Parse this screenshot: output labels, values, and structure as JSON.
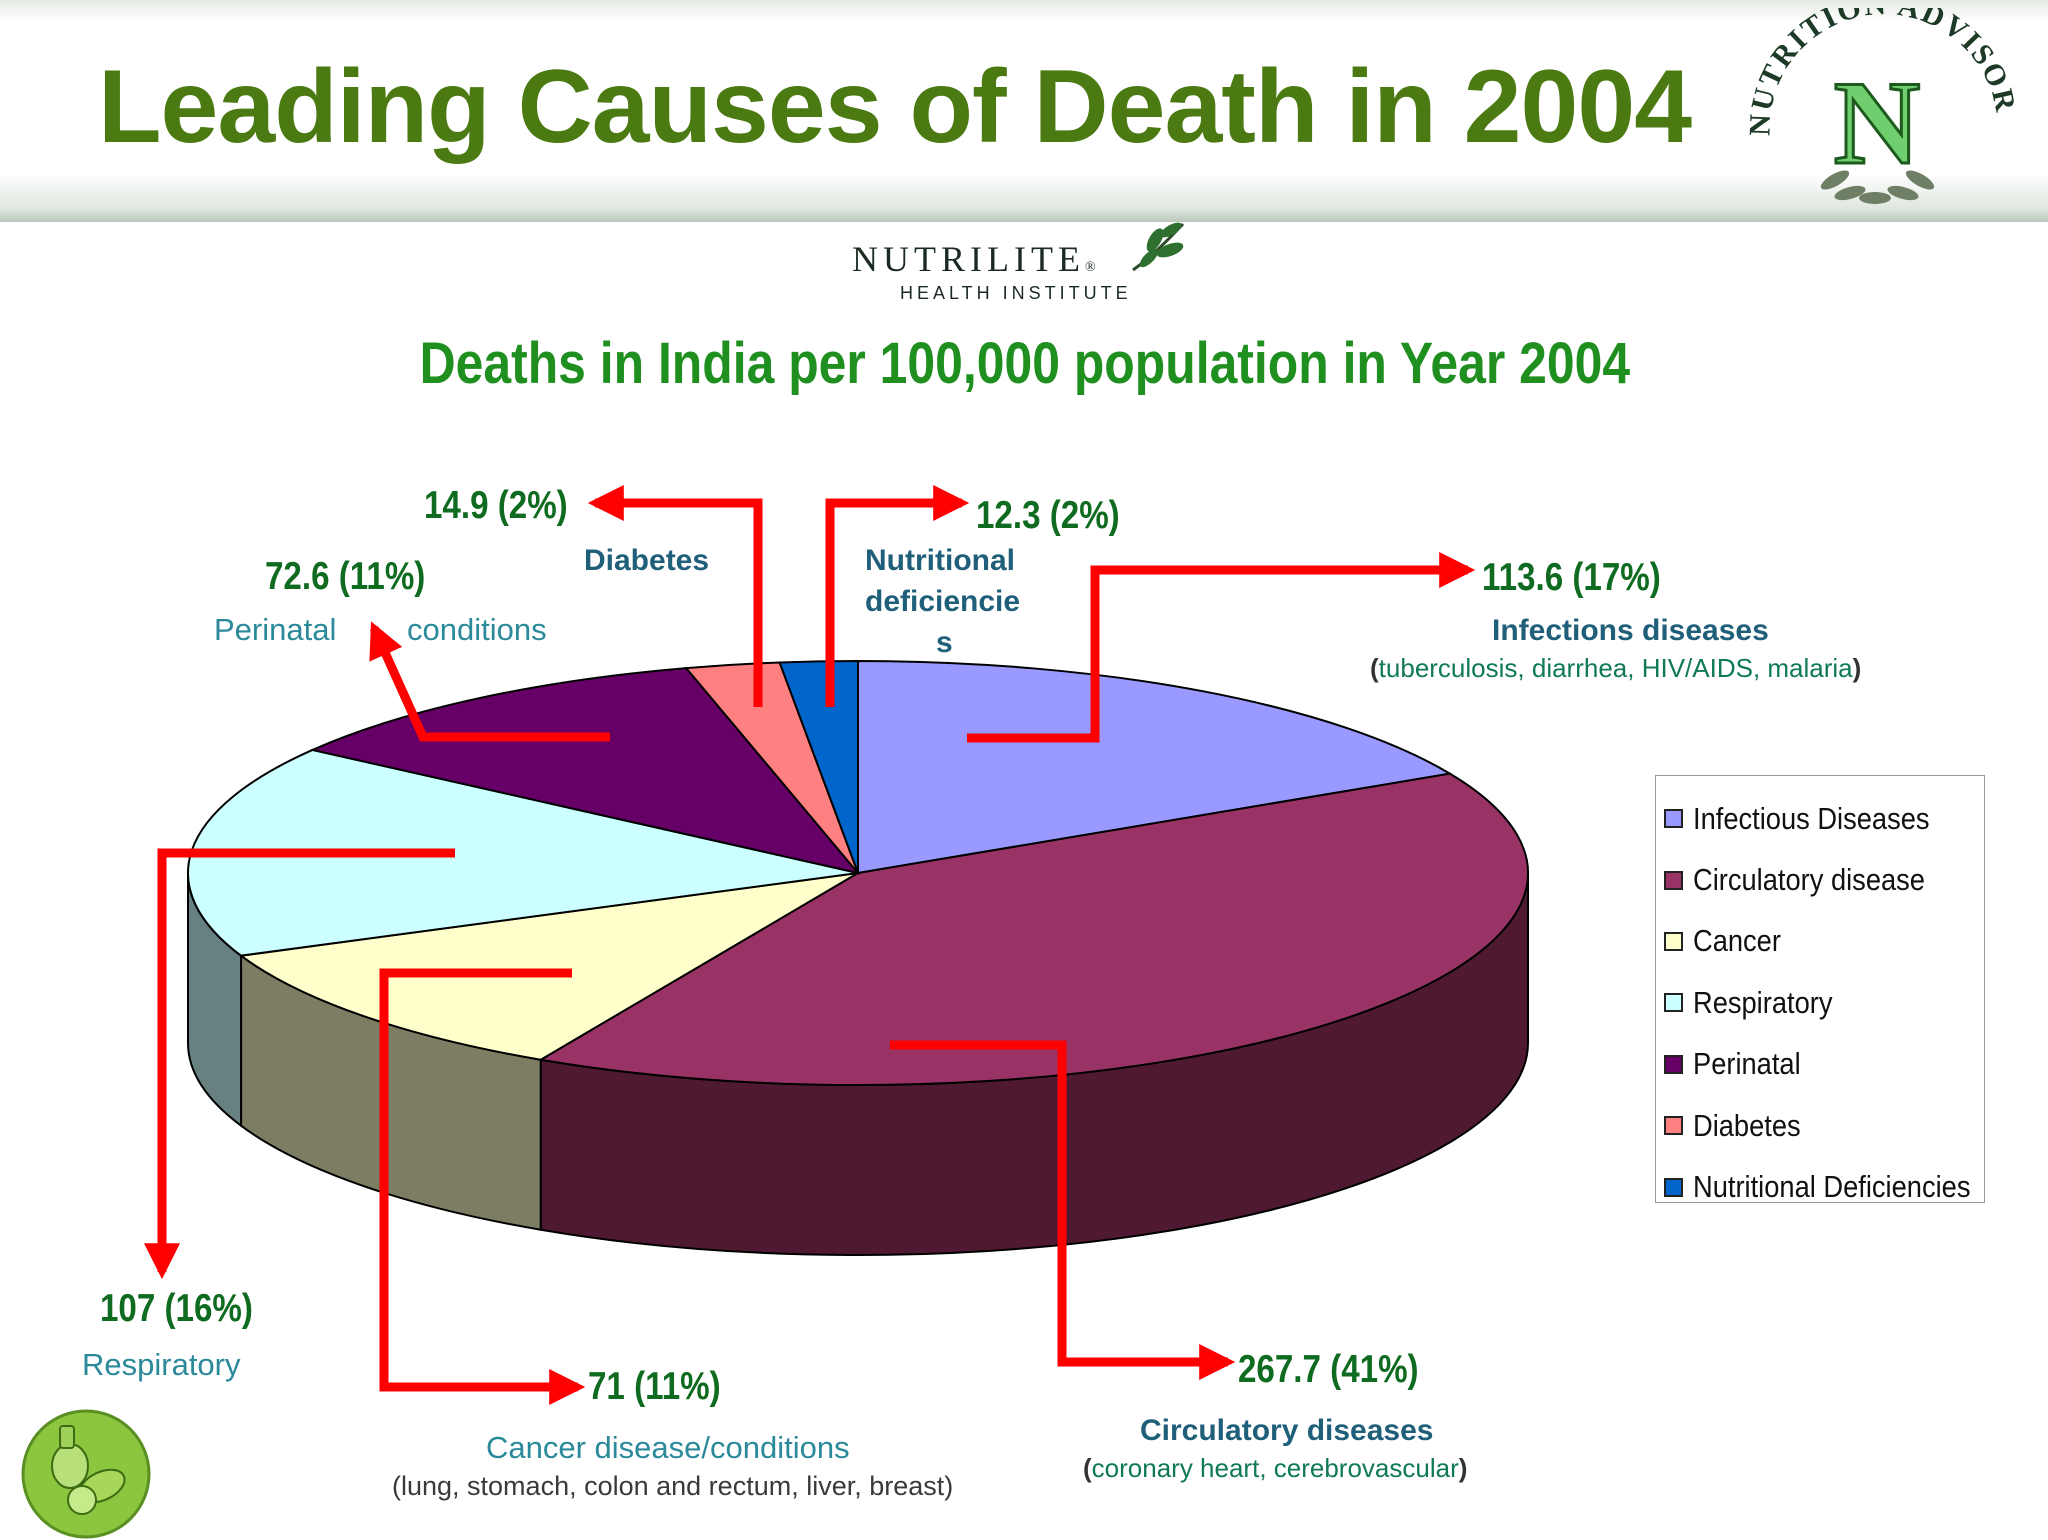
{
  "slide": {
    "title": "Leading Causes of Death in 2004"
  },
  "logos": {
    "advisor_text": "NUTRITION ADVISOR",
    "advisor_letter": "N",
    "brand_name": "NUTRILITE",
    "brand_mark": "®",
    "brand_subtitle": "HEALTH INSTITUTE",
    "leaf_icon": "leaf-icon",
    "food_icon": "food-basket-icon"
  },
  "labels": {
    "infectious_value": "113.6 (17%)",
    "infectious_name": "Infections diseases",
    "infectious_desc_open": "(",
    "infectious_desc": "tuberculosis, diarrhea, HIV/AIDS, malaria",
    "infectious_desc_close": ")",
    "circulatory_value": "267.7 (41%)",
    "circulatory_name": "Circulatory diseases",
    "circulatory_desc_open": "(",
    "circulatory_desc": "coronary heart, cerebrovascular",
    "circulatory_desc_close": ")",
    "cancer_value": "71 (11%)",
    "cancer_name": "Cancer disease/conditions",
    "cancer_desc": "(lung, stomach, colon and rectum, liver, breast)",
    "respiratory_value": "107 (16%)",
    "respiratory_name": "Respiratory",
    "perinatal_value": "72.6 (11%)",
    "perinatal_name_a": "Perinatal",
    "perinatal_name_b": "conditions",
    "diabetes_value": "14.9 (2%)",
    "diabetes_name": "Diabetes",
    "nutritional_value": "12.3 (2%)",
    "nutritional_name_1": "Nutritional",
    "nutritional_name_2": "deficiencie",
    "nutritional_name_3": "s"
  },
  "chart_data": {
    "type": "pie",
    "title": "Deaths in India per 100,000 population in Year 2004",
    "unit": "deaths per 100,000 population",
    "style": "3d",
    "legend_position": "right",
    "series": [
      {
        "name": "Infectious Diseases",
        "value": 113.6,
        "percent": 17,
        "color": "#9999ff",
        "side_color": "#6a6ab8"
      },
      {
        "name": "Circulatory disease",
        "value": 267.7,
        "percent": 41,
        "color": "#993366",
        "side_color": "#4f1a31"
      },
      {
        "name": "Cancer",
        "value": 71,
        "percent": 11,
        "color": "#ffffcc",
        "side_color": "#7d7d64"
      },
      {
        "name": "Respiratory",
        "value": 107,
        "percent": 16,
        "color": "#ccffff",
        "side_color": "#678080"
      },
      {
        "name": "Perinatal",
        "value": 72.6,
        "percent": 11,
        "color": "#660066",
        "side_color": "#330033"
      },
      {
        "name": "Diabetes",
        "value": 14.9,
        "percent": 2,
        "color": "#ff8080",
        "side_color": "#a04848"
      },
      {
        "name": "Nutritional Deficiencies",
        "value": 12.3,
        "percent": 2,
        "color": "#0066cc",
        "side_color": "#003366"
      }
    ]
  }
}
